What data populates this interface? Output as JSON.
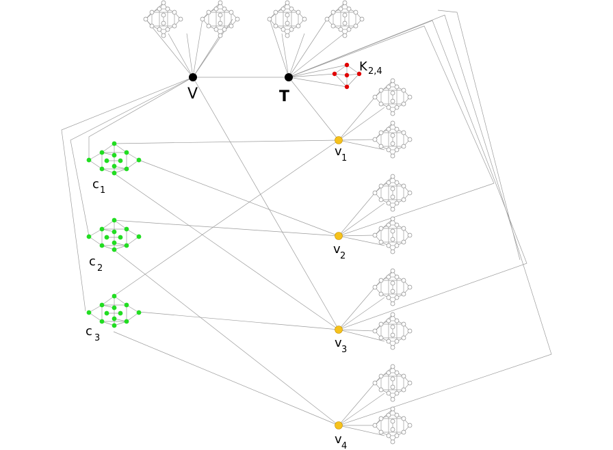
{
  "labels": {
    "V": "V",
    "T": "T",
    "K": "K",
    "K_sub": "2,4",
    "c": "c",
    "v": "v",
    "c1_sub": "1",
    "c2_sub": "2",
    "c3_sub": "3",
    "v1_sub": "1",
    "v2_sub": "2",
    "v3_sub": "3",
    "v4_sub": "4"
  },
  "colors": {
    "hub": "#000000",
    "clause": "#22dd22",
    "variable": "#f6c21c",
    "k24": "#e00000",
    "edge": "#9a9a9a"
  }
}
